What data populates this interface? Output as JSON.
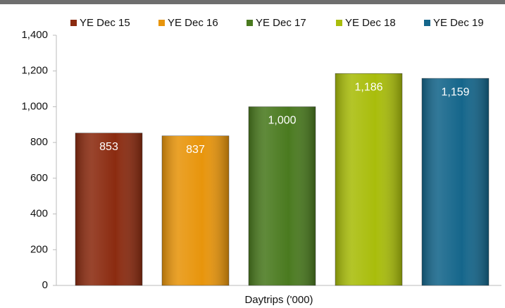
{
  "chart_data": {
    "type": "bar",
    "categories": [
      "Daytrips ('000)"
    ],
    "series": [
      {
        "name": "YE Dec 15",
        "color": "#8b2b10",
        "values": [
          853
        ],
        "value_labels": [
          "853"
        ]
      },
      {
        "name": "YE Dec 16",
        "color": "#e8950c",
        "values": [
          837
        ],
        "value_labels": [
          "837"
        ]
      },
      {
        "name": "YE Dec 17",
        "color": "#4a7a1f",
        "values": [
          1000
        ],
        "value_labels": [
          "1,000"
        ]
      },
      {
        "name": "YE Dec 18",
        "color": "#a9bd0b",
        "values": [
          1186
        ],
        "value_labels": [
          "1,186"
        ]
      },
      {
        "name": "YE Dec 19",
        "color": "#15668b",
        "values": [
          1159
        ],
        "value_labels": [
          "1,159"
        ]
      }
    ],
    "ylim": [
      0,
      1400
    ],
    "yticks": [
      0,
      200,
      400,
      600,
      800,
      {
        "value": 1000,
        "label": "1,000"
      },
      {
        "value": 1200,
        "label": "1,200"
      },
      {
        "value": 1400,
        "label": "1,400"
      }
    ],
    "legend": "top"
  }
}
